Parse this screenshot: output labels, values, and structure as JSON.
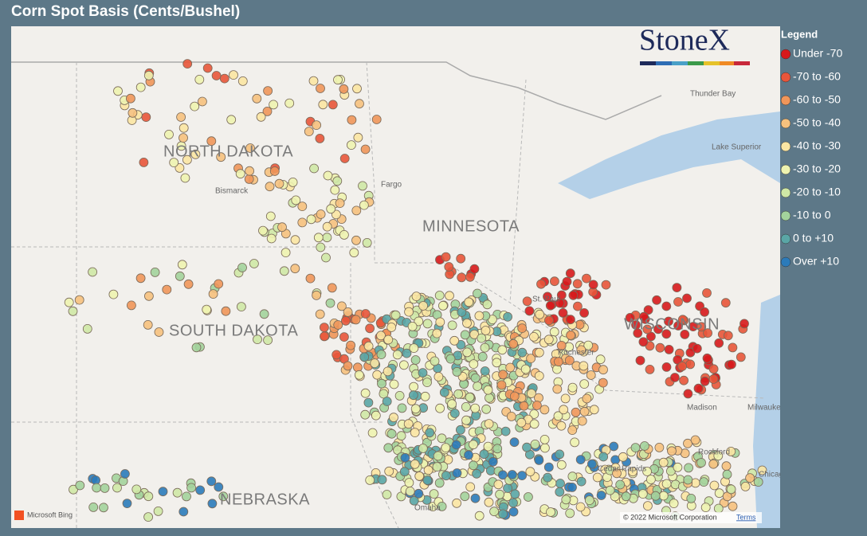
{
  "header": {
    "title": "Corn Spot Basis (Cents/Bushel)"
  },
  "legend": {
    "title": "Legend",
    "items": [
      {
        "label": "Under -70",
        "color": "#d7191c"
      },
      {
        "label": "-70 to -60",
        "color": "#e8553a"
      },
      {
        "label": "-60 to -50",
        "color": "#f0965a"
      },
      {
        "label": "-50 to -40",
        "color": "#f6c17e"
      },
      {
        "label": "-40 to -30",
        "color": "#fbe6a3"
      },
      {
        "label": "-30 to -20",
        "color": "#eef3b0"
      },
      {
        "label": "-20 to -10",
        "color": "#cfe8a6"
      },
      {
        "label": "-10 to 0",
        "color": "#a3d39c"
      },
      {
        "label": "0 to +10",
        "color": "#5aa6a6"
      },
      {
        "label": "Over +10",
        "color": "#2b7bba"
      }
    ]
  },
  "map": {
    "logo": "StoneX",
    "states": [
      "NORTH DAKOTA",
      "SOUTH DAKOTA",
      "MINNESOTA",
      "WISCONSIN",
      "NEBRASKA"
    ],
    "places": [
      "Bismarck",
      "Fargo",
      "St. Paul",
      "Rochester",
      "Cedar Rapids",
      "Omaha",
      "Rockford",
      "Chicago",
      "Milwaukee",
      "Madison",
      "Thunder Bay",
      "Lake Superior"
    ],
    "provider": "Microsoft Bing",
    "attribution": "© 2022 Microsoft Corporation",
    "terms": "Terms"
  }
}
